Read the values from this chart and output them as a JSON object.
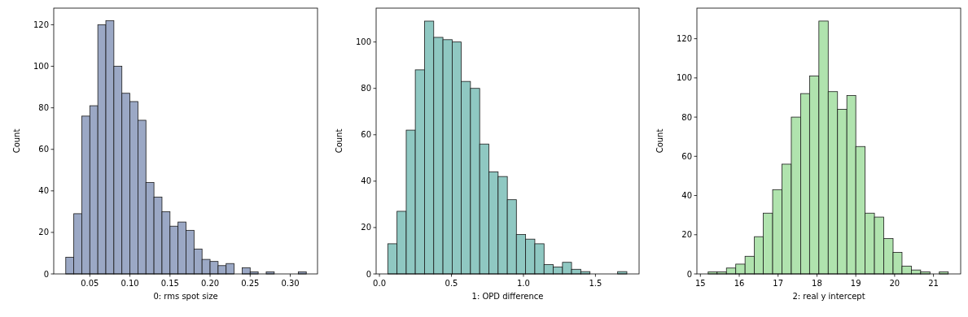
{
  "chart_data": [
    {
      "type": "histogram",
      "xlabel": "0: rms spot size",
      "ylabel": "Count",
      "color": "#9ba8c5",
      "bins": [
        0.02,
        0.03,
        0.04,
        0.05,
        0.06,
        0.07,
        0.08,
        0.09,
        0.1,
        0.11,
        0.12,
        0.13,
        0.14,
        0.15,
        0.16,
        0.17,
        0.18,
        0.19,
        0.2,
        0.21,
        0.22,
        0.23,
        0.24,
        0.25,
        0.26,
        0.27,
        0.28,
        0.29,
        0.3,
        0.31,
        0.32
      ],
      "values": [
        8,
        29,
        76,
        81,
        120,
        122,
        100,
        87,
        83,
        74,
        44,
        37,
        30,
        23,
        25,
        21,
        12,
        7,
        6,
        4,
        5,
        0,
        3,
        1,
        0,
        1,
        0,
        0,
        0,
        1
      ],
      "xlim": [
        0.005,
        0.334
      ],
      "xticks": [
        {
          "value": 0.05,
          "label": "0.05"
        },
        {
          "value": 0.1,
          "label": "0.10"
        },
        {
          "value": 0.15,
          "label": "0.15"
        },
        {
          "value": 0.2,
          "label": "0.20"
        },
        {
          "value": 0.25,
          "label": "0.25"
        },
        {
          "value": 0.3,
          "label": "0.30"
        }
      ],
      "ylim": [
        0,
        128
      ],
      "yticks": [
        0,
        20,
        40,
        60,
        80,
        100,
        120
      ]
    },
    {
      "type": "histogram",
      "xlabel": "1: OPD difference",
      "ylabel": "Count",
      "color": "#8fc8c2",
      "bins": [
        0.058,
        0.122,
        0.186,
        0.249,
        0.313,
        0.377,
        0.441,
        0.505,
        0.568,
        0.632,
        0.696,
        0.76,
        0.824,
        0.888,
        0.951,
        1.015,
        1.079,
        1.143,
        1.207,
        1.271,
        1.334,
        1.398,
        1.462,
        1.526,
        1.59,
        1.654,
        1.718
      ],
      "values": [
        13,
        27,
        62,
        88,
        109,
        102,
        101,
        100,
        83,
        80,
        56,
        44,
        42,
        32,
        17,
        15,
        13,
        4,
        3,
        5,
        2,
        1,
        0,
        0,
        0,
        1
      ],
      "xlim": [
        -0.023,
        1.803
      ],
      "xticks": [
        {
          "value": 0,
          "label": "0.0"
        },
        {
          "value": 0.5,
          "label": "0.5"
        },
        {
          "value": 1,
          "label": "1.0"
        },
        {
          "value": 1.5,
          "label": "1.5"
        }
      ],
      "ylim": [
        0,
        114.6
      ],
      "yticks": [
        0,
        20,
        40,
        60,
        80,
        100
      ]
    },
    {
      "type": "histogram",
      "xlabel": "2: real y intercept",
      "ylabel": "Count",
      "color": "#b0e3ae",
      "bins": [
        15.2,
        15.43,
        15.67,
        15.91,
        16.15,
        16.39,
        16.62,
        16.86,
        17.1,
        17.34,
        17.58,
        17.81,
        18.05,
        18.29,
        18.53,
        18.77,
        19.0,
        19.24,
        19.48,
        19.72,
        19.96,
        20.19,
        20.43,
        20.67,
        20.91,
        21.15,
        21.38
      ],
      "values": [
        1,
        1,
        3,
        5,
        9,
        19,
        31,
        43,
        56,
        80,
        92,
        101,
        129,
        93,
        84,
        91,
        65,
        31,
        29,
        18,
        11,
        4,
        2,
        1,
        0,
        1
      ],
      "xlim": [
        14.91,
        21.7
      ],
      "xticks": [
        15,
        16,
        17,
        18,
        19,
        20,
        21
      ],
      "ylim": [
        0,
        135.6
      ],
      "yticks": [
        0,
        20,
        40,
        60,
        80,
        100,
        120
      ]
    }
  ]
}
